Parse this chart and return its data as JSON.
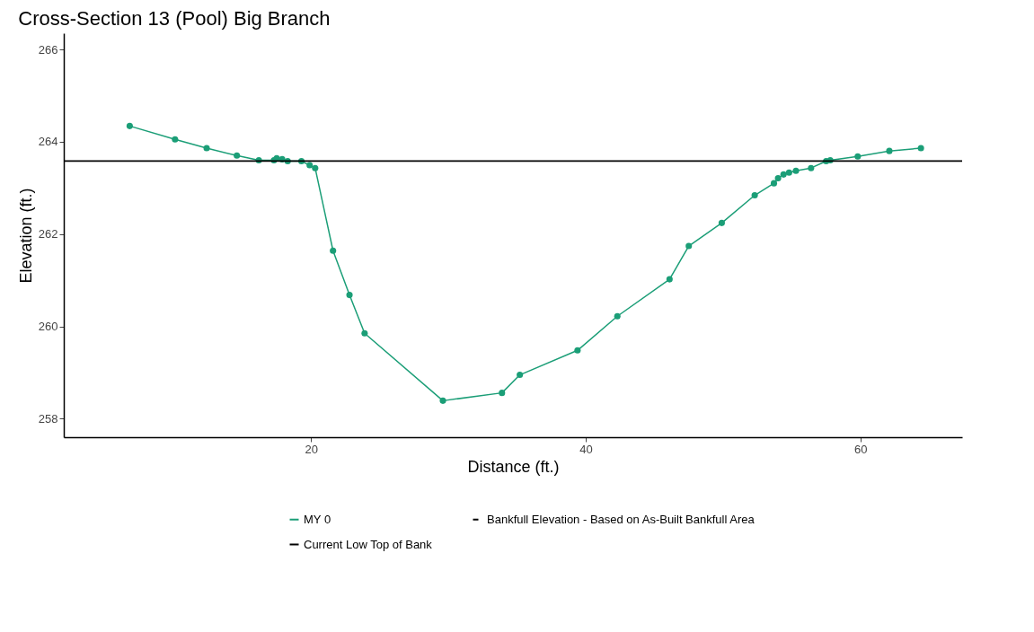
{
  "chart_data": {
    "type": "line",
    "title": "Cross-Section 13 (Pool) Big Branch",
    "xlabel": "Distance (ft.)",
    "ylabel": "Elevation (ft.)",
    "series": [
      {
        "name": "MY 0",
        "color": "#1b9e77",
        "x": [
          6.8,
          10.1,
          12.4,
          14.6,
          16.2,
          17.3,
          17.5,
          17.9,
          18.3,
          19.3,
          19.9,
          20.3,
          21.6,
          22.8,
          23.9,
          29.6,
          33.9,
          35.2,
          39.4,
          42.3,
          46.1,
          47.5,
          49.9,
          52.3,
          53.7,
          54.0,
          54.4,
          54.8,
          55.3,
          56.4,
          57.5,
          57.8,
          59.8,
          62.1,
          64.4
        ],
        "values": [
          264.34,
          264.05,
          263.86,
          263.7,
          263.6,
          263.6,
          263.64,
          263.62,
          263.58,
          263.58,
          263.49,
          263.43,
          261.64,
          260.68,
          259.85,
          258.39,
          258.56,
          258.95,
          259.48,
          260.22,
          261.02,
          261.74,
          262.24,
          262.84,
          263.1,
          263.21,
          263.29,
          263.33,
          263.37,
          263.43,
          263.58,
          263.6,
          263.68,
          263.8,
          263.86
        ]
      },
      {
        "name": "Bankfull Elevation - Based on As-Built Bankfull Area",
        "color": "#000000",
        "line_style": "dashed"
      }
    ],
    "ref_lines": [
      {
        "axis": "y",
        "value": 263.58,
        "label": "Current Low Top of Bank",
        "color": "#000000",
        "line_style": "solid"
      }
    ],
    "xlim": [
      2.0,
      67.4
    ],
    "ylim": [
      257.6,
      266.35
    ],
    "xticks": [
      20,
      40,
      60
    ],
    "yticks": [
      258,
      260,
      262,
      264,
      266
    ],
    "marker": "circle",
    "line_style": "solid",
    "grid": false,
    "legend": "bottom"
  }
}
